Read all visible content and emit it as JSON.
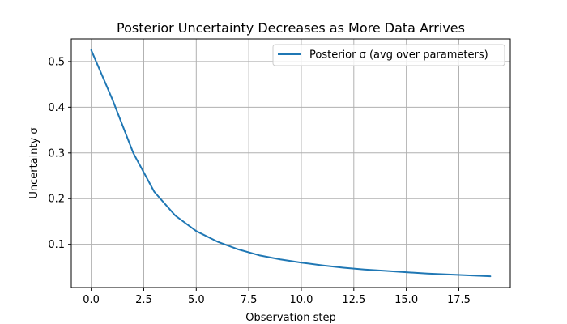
{
  "chart_data": {
    "type": "line",
    "title": "Posterior Uncertainty Decreases as More Data Arrives",
    "xlabel": "Observation step",
    "ylabel": "Uncertainty σ",
    "xlim": [
      -0.95,
      19.95
    ],
    "ylim": [
      0.0055,
      0.5495
    ],
    "grid": true,
    "legend_position": "top-right",
    "x_ticks": [
      0,
      2.5,
      5,
      7.5,
      10,
      12.5,
      15,
      17.5
    ],
    "x_tick_labels": [
      "0.0",
      "2.5",
      "5.0",
      "7.5",
      "10.0",
      "12.5",
      "15.0",
      "17.5"
    ],
    "y_ticks": [
      0.1,
      0.2,
      0.3,
      0.4,
      0.5
    ],
    "y_tick_labels": [
      "0.1",
      "0.2",
      "0.3",
      "0.4",
      "0.5"
    ],
    "series": [
      {
        "name": "Posterior σ (avg over parameters)",
        "color": "#1f77b4",
        "x": [
          0,
          1,
          2,
          3,
          4,
          5,
          6,
          7,
          8,
          9,
          10,
          11,
          12,
          13,
          14,
          15,
          16,
          17,
          18,
          19
        ],
        "y": [
          0.525,
          0.418,
          0.3,
          0.215,
          0.163,
          0.129,
          0.106,
          0.089,
          0.076,
          0.067,
          0.06,
          0.054,
          0.049,
          0.045,
          0.042,
          0.039,
          0.036,
          0.034,
          0.032,
          0.03
        ]
      }
    ]
  }
}
